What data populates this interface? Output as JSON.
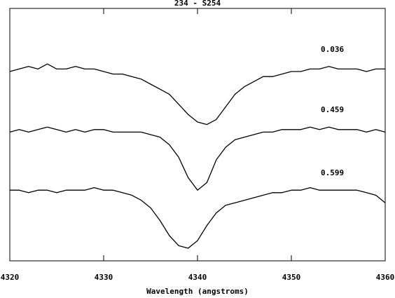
{
  "chart_data": {
    "type": "line",
    "title": "234 - S254",
    "x_label": "Wavelength (angstroms)",
    "x": [
      4320,
      4321,
      4322,
      4323,
      4324,
      4325,
      4326,
      4327,
      4328,
      4329,
      4330,
      4331,
      4332,
      4333,
      4334,
      4335,
      4336,
      4337,
      4338,
      4339,
      4340,
      4341,
      4342,
      4343,
      4344,
      4345,
      4346,
      4347,
      4348,
      4349,
      4350,
      4351,
      4352,
      4353,
      4354,
      4355,
      4356,
      4357,
      4358,
      4359,
      4360
    ],
    "series": [
      {
        "name": "0.036",
        "color": "#000000",
        "values": [
          0.75,
          0.76,
          0.77,
          0.76,
          0.78,
          0.76,
          0.76,
          0.77,
          0.76,
          0.76,
          0.75,
          0.74,
          0.74,
          0.73,
          0.72,
          0.7,
          0.68,
          0.66,
          0.62,
          0.58,
          0.55,
          0.54,
          0.56,
          0.61,
          0.66,
          0.69,
          0.71,
          0.73,
          0.73,
          0.74,
          0.75,
          0.75,
          0.76,
          0.76,
          0.77,
          0.76,
          0.76,
          0.76,
          0.75,
          0.76,
          0.76
        ]
      },
      {
        "name": "0.459",
        "color": "#000000",
        "values": [
          0.51,
          0.52,
          0.51,
          0.52,
          0.53,
          0.52,
          0.51,
          0.52,
          0.51,
          0.52,
          0.52,
          0.51,
          0.51,
          0.51,
          0.51,
          0.5,
          0.49,
          0.46,
          0.41,
          0.33,
          0.28,
          0.31,
          0.4,
          0.45,
          0.48,
          0.49,
          0.5,
          0.51,
          0.51,
          0.52,
          0.52,
          0.52,
          0.53,
          0.52,
          0.53,
          0.52,
          0.52,
          0.52,
          0.51,
          0.52,
          0.51
        ]
      },
      {
        "name": "0.599",
        "color": "#000000",
        "values": [
          0.28,
          0.28,
          0.27,
          0.28,
          0.28,
          0.27,
          0.28,
          0.28,
          0.28,
          0.29,
          0.28,
          0.28,
          0.27,
          0.26,
          0.24,
          0.21,
          0.16,
          0.1,
          0.06,
          0.05,
          0.08,
          0.14,
          0.19,
          0.22,
          0.23,
          0.24,
          0.25,
          0.26,
          0.27,
          0.27,
          0.28,
          0.28,
          0.29,
          0.28,
          0.28,
          0.28,
          0.28,
          0.28,
          0.27,
          0.26,
          0.23
        ]
      }
    ],
    "xlim": [
      4320,
      4360
    ],
    "xticks": [
      4320,
      4330,
      4340,
      4350,
      4360
    ],
    "ylim": [
      0,
      1
    ]
  }
}
